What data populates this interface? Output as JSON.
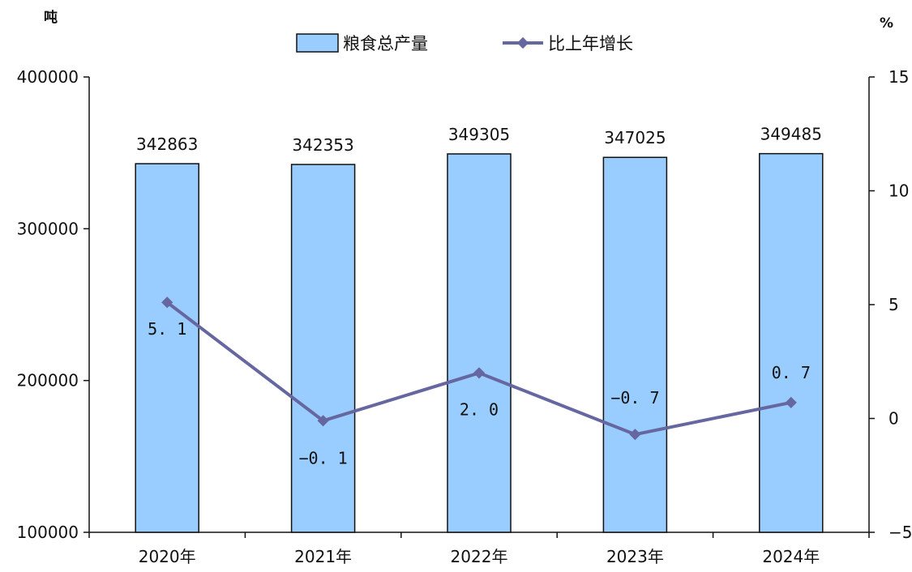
{
  "chart_data": {
    "type": "bar",
    "categories": [
      "2020年",
      "2021年",
      "2022年",
      "2023年",
      "2024年"
    ],
    "series": [
      {
        "name": "粮食总产量",
        "type": "bar",
        "axis": "left",
        "values": [
          342863,
          342353,
          349305,
          347025,
          349485
        ],
        "labels": [
          "342863",
          "342353",
          "349305",
          "347025",
          "349485"
        ],
        "color": "#99CCFF"
      },
      {
        "name": "比上年增长",
        "type": "line",
        "axis": "right",
        "values": [
          5.1,
          -0.1,
          2.0,
          -0.7,
          0.7
        ],
        "labels": [
          "5. 1",
          "−0. 1",
          "2. 0",
          "−0. 7",
          "0. 7"
        ],
        "color": "#6666A0"
      }
    ],
    "y_left": {
      "unit": "吨",
      "ylim": [
        100000,
        400000
      ],
      "ticks": [
        100000,
        200000,
        300000,
        400000
      ],
      "tick_labels": [
        "100000",
        "200000",
        "300000",
        "400000"
      ]
    },
    "y_right": {
      "unit": "%",
      "ylim": [
        -5,
        15
      ],
      "ticks": [
        -5,
        0,
        5,
        10,
        15
      ],
      "tick_labels": [
        "−5",
        "0",
        "5",
        "10",
        "15"
      ]
    },
    "legend_position": "top-center",
    "grid": false
  }
}
